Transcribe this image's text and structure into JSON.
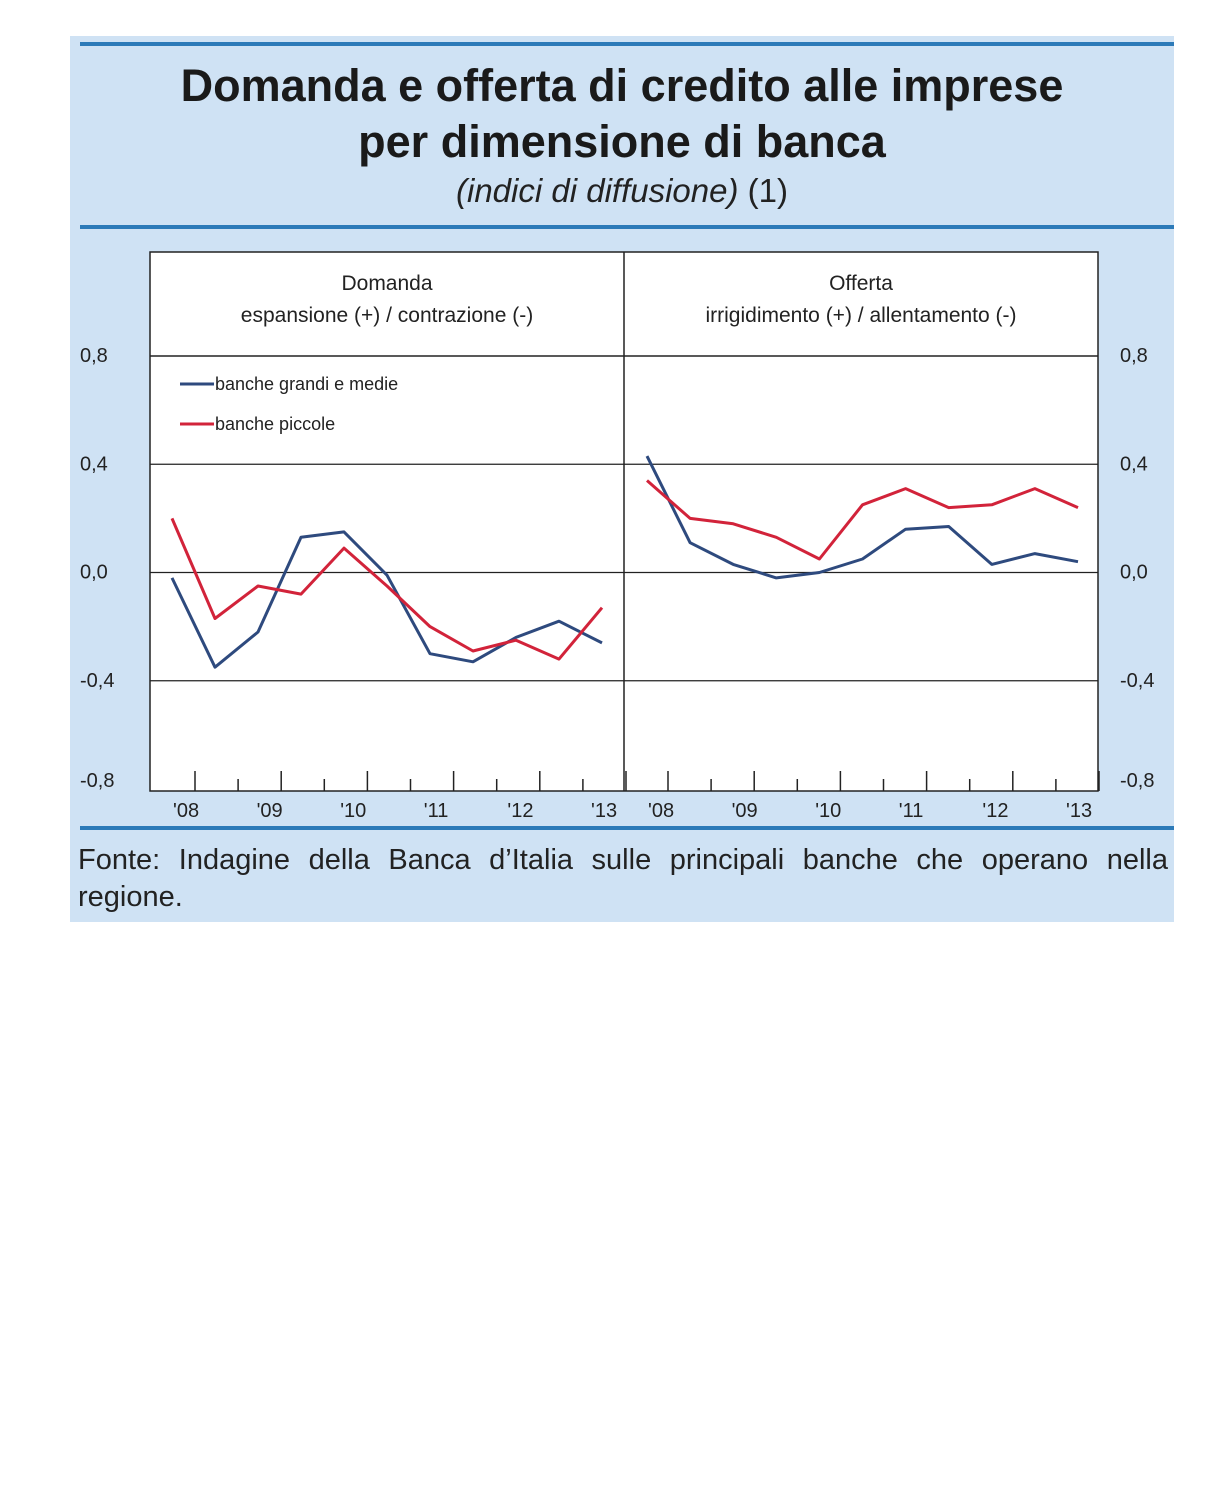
{
  "title_line1": "Domanda e offerta di credito alle imprese",
  "title_line2": "per dimensione di banca",
  "subtitle_italic": "(indici di diffusione)",
  "subtitle_note": "(1)",
  "source": "Fonte: Indagine della Banca d’Italia sulle principali banche che operano nella regione.",
  "colors": {
    "background": "#cfe2f4",
    "rule": "#2c7ab8",
    "series_large": "#2e4a7e",
    "series_small": "#d2233a"
  },
  "chart_data": [
    {
      "type": "line",
      "panel_title": "Domanda",
      "panel_subtitle": "espansione (+) / contrazione (-)",
      "x_tick_labels": [
        "'08",
        "'09",
        "'10",
        "'11",
        "'12",
        "'13"
      ],
      "y_tick_labels": [
        "0,8",
        "0,4",
        "0,0",
        "-0,4",
        "-0,8"
      ],
      "y_ticks": [
        0.8,
        0.4,
        0.0,
        -0.4,
        -0.8
      ],
      "ylim": [
        -0.8,
        0.8
      ],
      "legend_position": "top-left",
      "series": [
        {
          "name": "banche grandi e medie",
          "color": "#2e4a7e",
          "values": [
            -0.02,
            -0.35,
            -0.22,
            0.13,
            0.15,
            -0.01,
            -0.3,
            -0.33,
            -0.24,
            -0.18,
            -0.26
          ]
        },
        {
          "name": "banche piccole",
          "color": "#d2233a",
          "values": [
            0.2,
            -0.17,
            -0.05,
            -0.08,
            0.09,
            -0.05,
            -0.2,
            -0.29,
            -0.25,
            -0.32,
            -0.13
          ]
        }
      ]
    },
    {
      "type": "line",
      "panel_title": "Offerta",
      "panel_subtitle": "irrigidimento (+) / allentamento (-)",
      "x_tick_labels": [
        "'08",
        "'09",
        "'10",
        "'11",
        "'12",
        "'13"
      ],
      "y_tick_labels": [
        "0,8",
        "0,4",
        "0,0",
        "-0,4",
        "-0,8"
      ],
      "y_ticks": [
        0.8,
        0.4,
        0.0,
        -0.4,
        -0.8
      ],
      "ylim": [
        -0.8,
        0.8
      ],
      "series": [
        {
          "name": "banche grandi e medie",
          "color": "#2e4a7e",
          "values": [
            0.43,
            0.11,
            0.03,
            -0.02,
            0.0,
            0.05,
            0.16,
            0.17,
            0.03,
            0.07,
            0.04
          ]
        },
        {
          "name": "banche piccole",
          "color": "#d2233a",
          "values": [
            0.34,
            0.2,
            0.18,
            0.13,
            0.05,
            0.25,
            0.31,
            0.24,
            0.25,
            0.31,
            0.24
          ]
        }
      ]
    }
  ]
}
